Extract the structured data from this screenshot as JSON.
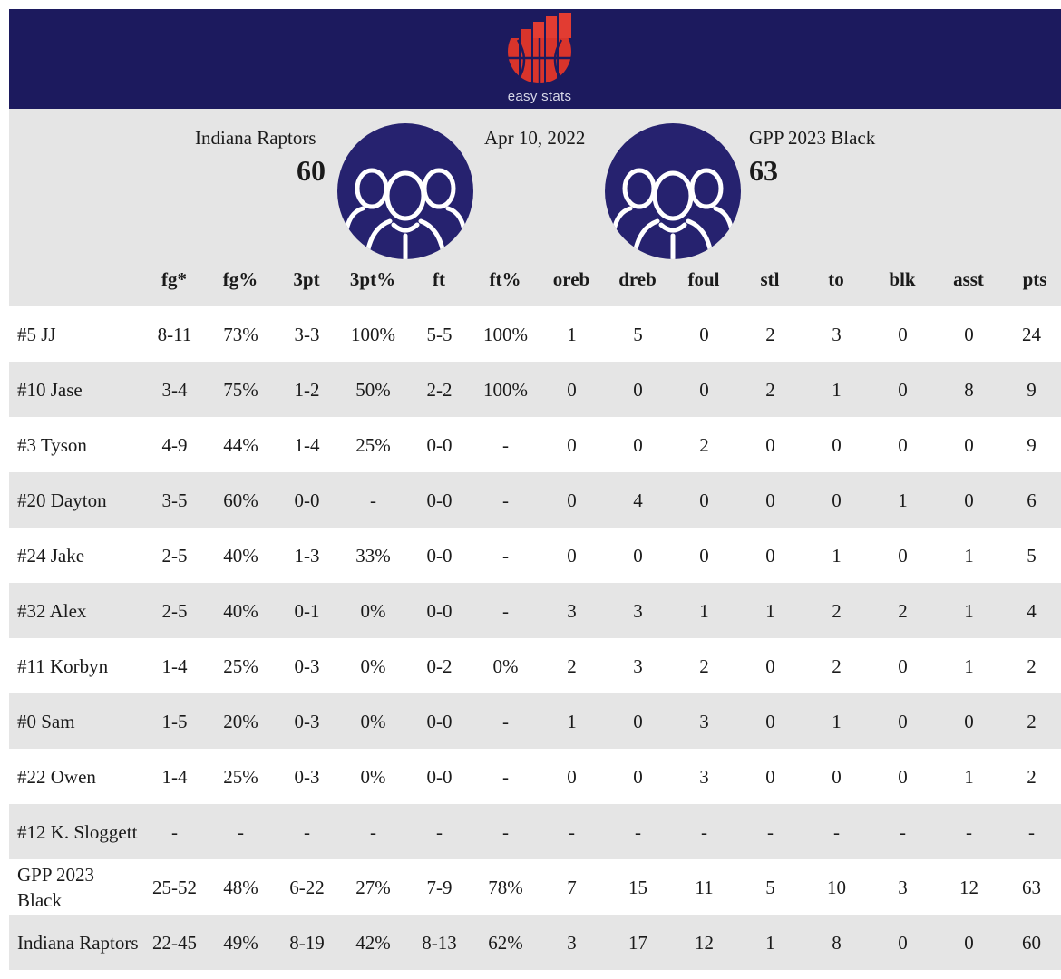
{
  "app": {
    "logo_text": "easy stats"
  },
  "game": {
    "date": "Apr 10, 2022",
    "home": {
      "name": "Indiana Raptors",
      "score": "60"
    },
    "away": {
      "name": "GPP 2023 Black",
      "score": "63"
    }
  },
  "icons": {
    "logo": "bar-chart-basketball-icon",
    "team_avatar": "team-group-icon"
  },
  "colors": {
    "header_bg": "#1c1a5e",
    "avatar_bg": "#26226f",
    "logo_red": "#d9342b",
    "row_alt": "#e5e5e5"
  },
  "columns": [
    "fg*",
    "fg%",
    "3pt",
    "3pt%",
    "ft",
    "ft%",
    "oreb",
    "dreb",
    "foul",
    "stl",
    "to",
    "blk",
    "asst",
    "pts"
  ],
  "rows": [
    {
      "name": "#5 JJ",
      "stats": [
        "8-11",
        "73%",
        "3-3",
        "100%",
        "5-5",
        "100%",
        "1",
        "5",
        "0",
        "2",
        "3",
        "0",
        "0",
        "24"
      ]
    },
    {
      "name": "#10 Jase",
      "stats": [
        "3-4",
        "75%",
        "1-2",
        "50%",
        "2-2",
        "100%",
        "0",
        "0",
        "0",
        "2",
        "1",
        "0",
        "8",
        "9"
      ]
    },
    {
      "name": "#3 Tyson",
      "stats": [
        "4-9",
        "44%",
        "1-4",
        "25%",
        "0-0",
        "-",
        "0",
        "0",
        "2",
        "0",
        "0",
        "0",
        "0",
        "9"
      ]
    },
    {
      "name": "#20 Dayton",
      "stats": [
        "3-5",
        "60%",
        "0-0",
        "-",
        "0-0",
        "-",
        "0",
        "4",
        "0",
        "0",
        "0",
        "1",
        "0",
        "6"
      ]
    },
    {
      "name": "#24 Jake",
      "stats": [
        "2-5",
        "40%",
        "1-3",
        "33%",
        "0-0",
        "-",
        "0",
        "0",
        "0",
        "0",
        "1",
        "0",
        "1",
        "5"
      ]
    },
    {
      "name": "#32 Alex",
      "stats": [
        "2-5",
        "40%",
        "0-1",
        "0%",
        "0-0",
        "-",
        "3",
        "3",
        "1",
        "1",
        "2",
        "2",
        "1",
        "4"
      ]
    },
    {
      "name": "#11 Korbyn",
      "stats": [
        "1-4",
        "25%",
        "0-3",
        "0%",
        "0-2",
        "0%",
        "2",
        "3",
        "2",
        "0",
        "2",
        "0",
        "1",
        "2"
      ]
    },
    {
      "name": "#0 Sam",
      "stats": [
        "1-5",
        "20%",
        "0-3",
        "0%",
        "0-0",
        "-",
        "1",
        "0",
        "3",
        "0",
        "1",
        "0",
        "0",
        "2"
      ]
    },
    {
      "name": "#22 Owen",
      "stats": [
        "1-4",
        "25%",
        "0-3",
        "0%",
        "0-0",
        "-",
        "0",
        "0",
        "3",
        "0",
        "0",
        "0",
        "1",
        "2"
      ]
    },
    {
      "name": "#12 K. Sloggett",
      "stats": [
        "-",
        "-",
        "-",
        "-",
        "-",
        "-",
        "-",
        "-",
        "-",
        "-",
        "-",
        "-",
        "-",
        "-"
      ]
    },
    {
      "name": "GPP 2023 Black",
      "stats": [
        "25-52",
        "48%",
        "6-22",
        "27%",
        "7-9",
        "78%",
        "7",
        "15",
        "11",
        "5",
        "10",
        "3",
        "12",
        "63"
      ]
    },
    {
      "name": "Indiana Raptors",
      "stats": [
        "22-45",
        "49%",
        "8-19",
        "42%",
        "8-13",
        "62%",
        "3",
        "17",
        "12",
        "1",
        "8",
        "0",
        "0",
        "60"
      ]
    }
  ]
}
